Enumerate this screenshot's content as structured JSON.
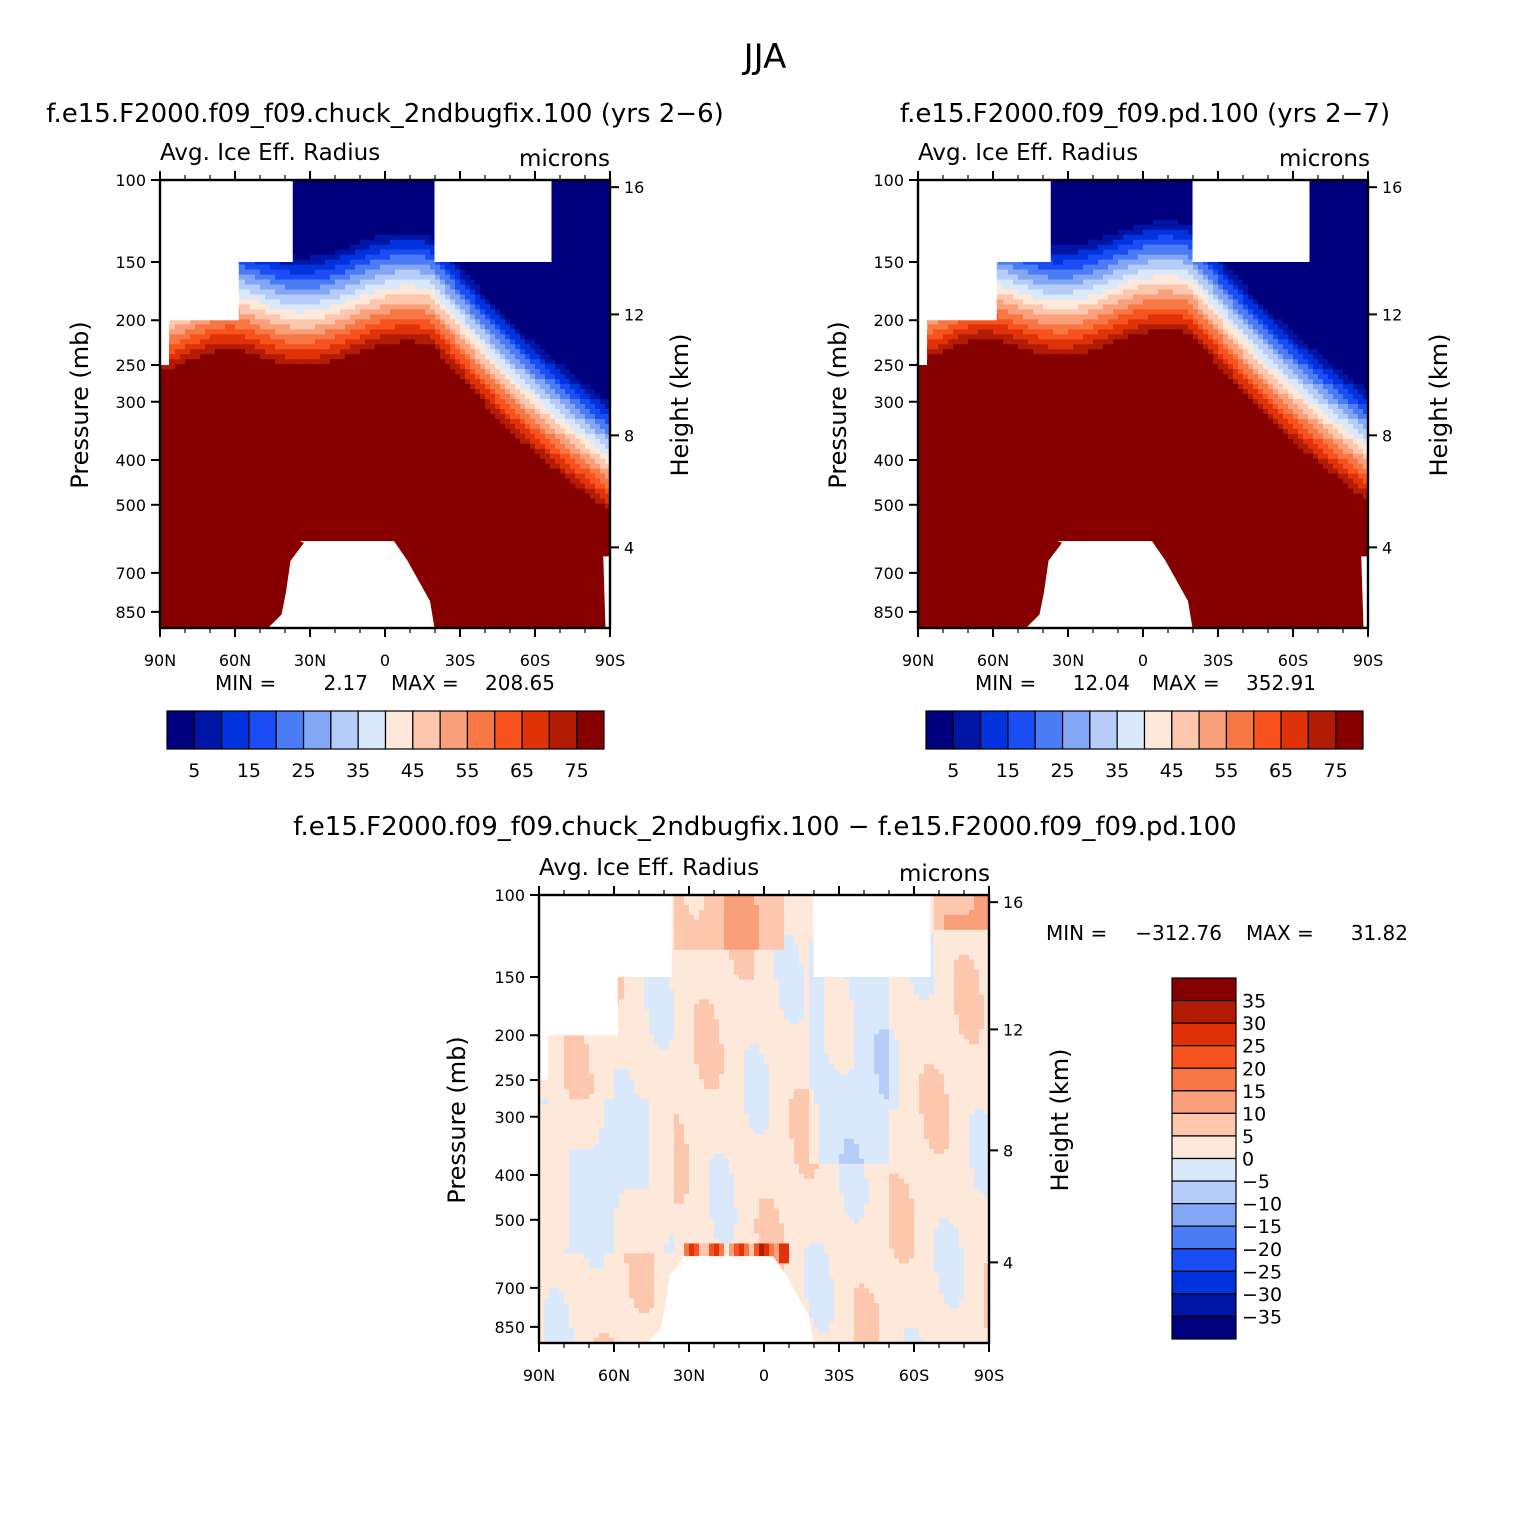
{
  "figure_title": "JJA",
  "chart_data": [
    {
      "id": "case",
      "type": "contour",
      "title": "f.e15.F2000.f09_f09.chuck_2ndbugfix.100 (yrs 2−6)",
      "left_subtitle": "Avg. Ice Eff. Radius",
      "right_subtitle": "microns",
      "ylabel": "Pressure (mb)",
      "ylabel_right": "Height (km)",
      "x_ticks": [
        "90N",
        "60N",
        "30N",
        "0",
        "30S",
        "60S",
        "90S"
      ],
      "pressure_ticks": [
        "100",
        "150",
        "200",
        "250",
        "300",
        "400",
        "500",
        "700",
        "850"
      ],
      "height_ticks": [
        "16",
        "12",
        "8",
        "4"
      ],
      "min_label": "MIN =",
      "min_value": "2.17",
      "max_label": "MAX =",
      "max_value": "208.65",
      "colorbar_labels": [
        "5",
        "15",
        "25",
        "35",
        "45",
        "55",
        "65",
        "75"
      ],
      "levels": [
        5,
        10,
        15,
        20,
        25,
        30,
        35,
        40,
        45,
        50,
        55,
        60,
        65,
        70,
        75
      ],
      "colors": [
        "#00007f",
        "#0015a4",
        "#0033dd",
        "#1b4df5",
        "#4a7cf5",
        "#84a7f5",
        "#b5cdf8",
        "#d9e9fb",
        "#fde8da",
        "#fcc7ad",
        "#f9a07a",
        "#f87845",
        "#f8521e",
        "#df3209",
        "#b31c04",
        "#860000"
      ]
    },
    {
      "id": "control",
      "type": "contour",
      "title": "f.e15.F2000.f09_f09.pd.100 (yrs 2−7)",
      "left_subtitle": "Avg. Ice Eff. Radius",
      "right_subtitle": "microns",
      "ylabel": "Pressure (mb)",
      "ylabel_right": "Height (km)",
      "x_ticks": [
        "90N",
        "60N",
        "30N",
        "0",
        "30S",
        "60S",
        "90S"
      ],
      "pressure_ticks": [
        "100",
        "150",
        "200",
        "250",
        "300",
        "400",
        "500",
        "700",
        "850"
      ],
      "height_ticks": [
        "16",
        "12",
        "8",
        "4"
      ],
      "min_label": "MIN =",
      "min_value": "12.04",
      "max_label": "MAX =",
      "max_value": "352.91",
      "colorbar_labels": [
        "5",
        "15",
        "25",
        "35",
        "45",
        "55",
        "65",
        "75"
      ],
      "levels": [
        5,
        10,
        15,
        20,
        25,
        30,
        35,
        40,
        45,
        50,
        55,
        60,
        65,
        70,
        75
      ],
      "colors": [
        "#00007f",
        "#0015a4",
        "#0033dd",
        "#1b4df5",
        "#4a7cf5",
        "#84a7f5",
        "#b5cdf8",
        "#d9e9fb",
        "#fde8da",
        "#fcc7ad",
        "#f9a07a",
        "#f87845",
        "#f8521e",
        "#df3209",
        "#b31c04",
        "#860000"
      ]
    },
    {
      "id": "difference",
      "type": "contour",
      "title": "f.e15.F2000.f09_f09.chuck_2ndbugfix.100 − f.e15.F2000.f09_f09.pd.100",
      "left_subtitle": "Avg. Ice Eff. Radius",
      "right_subtitle": "microns",
      "ylabel": "Pressure (mb)",
      "ylabel_right": "Height (km)",
      "x_ticks": [
        "90N",
        "60N",
        "30N",
        "0",
        "30S",
        "60S",
        "90S"
      ],
      "pressure_ticks": [
        "100",
        "150",
        "200",
        "250",
        "300",
        "400",
        "500",
        "700",
        "850"
      ],
      "height_ticks": [
        "16",
        "12",
        "8",
        "4"
      ],
      "min_label": "MIN =",
      "min_value": "−312.76",
      "max_label": "MAX =",
      "max_value": "31.82",
      "colorbar_labels": [
        "35",
        "30",
        "25",
        "20",
        "15",
        "10",
        "5",
        "0",
        "−5",
        "−10",
        "−15",
        "−20",
        "−25",
        "−30",
        "−35"
      ],
      "levels": [
        -35,
        -30,
        -25,
        -20,
        -15,
        -10,
        -5,
        0,
        5,
        10,
        15,
        20,
        25,
        30,
        35
      ],
      "colors": [
        "#860000",
        "#b31c04",
        "#df3209",
        "#f8521e",
        "#f87845",
        "#f9a07a",
        "#fcc7ad",
        "#fde8da",
        "#d9e9fb",
        "#b5cdf8",
        "#84a7f5",
        "#4a7cf5",
        "#1b4df5",
        "#0033dd",
        "#0015a4",
        "#00007f"
      ]
    }
  ]
}
